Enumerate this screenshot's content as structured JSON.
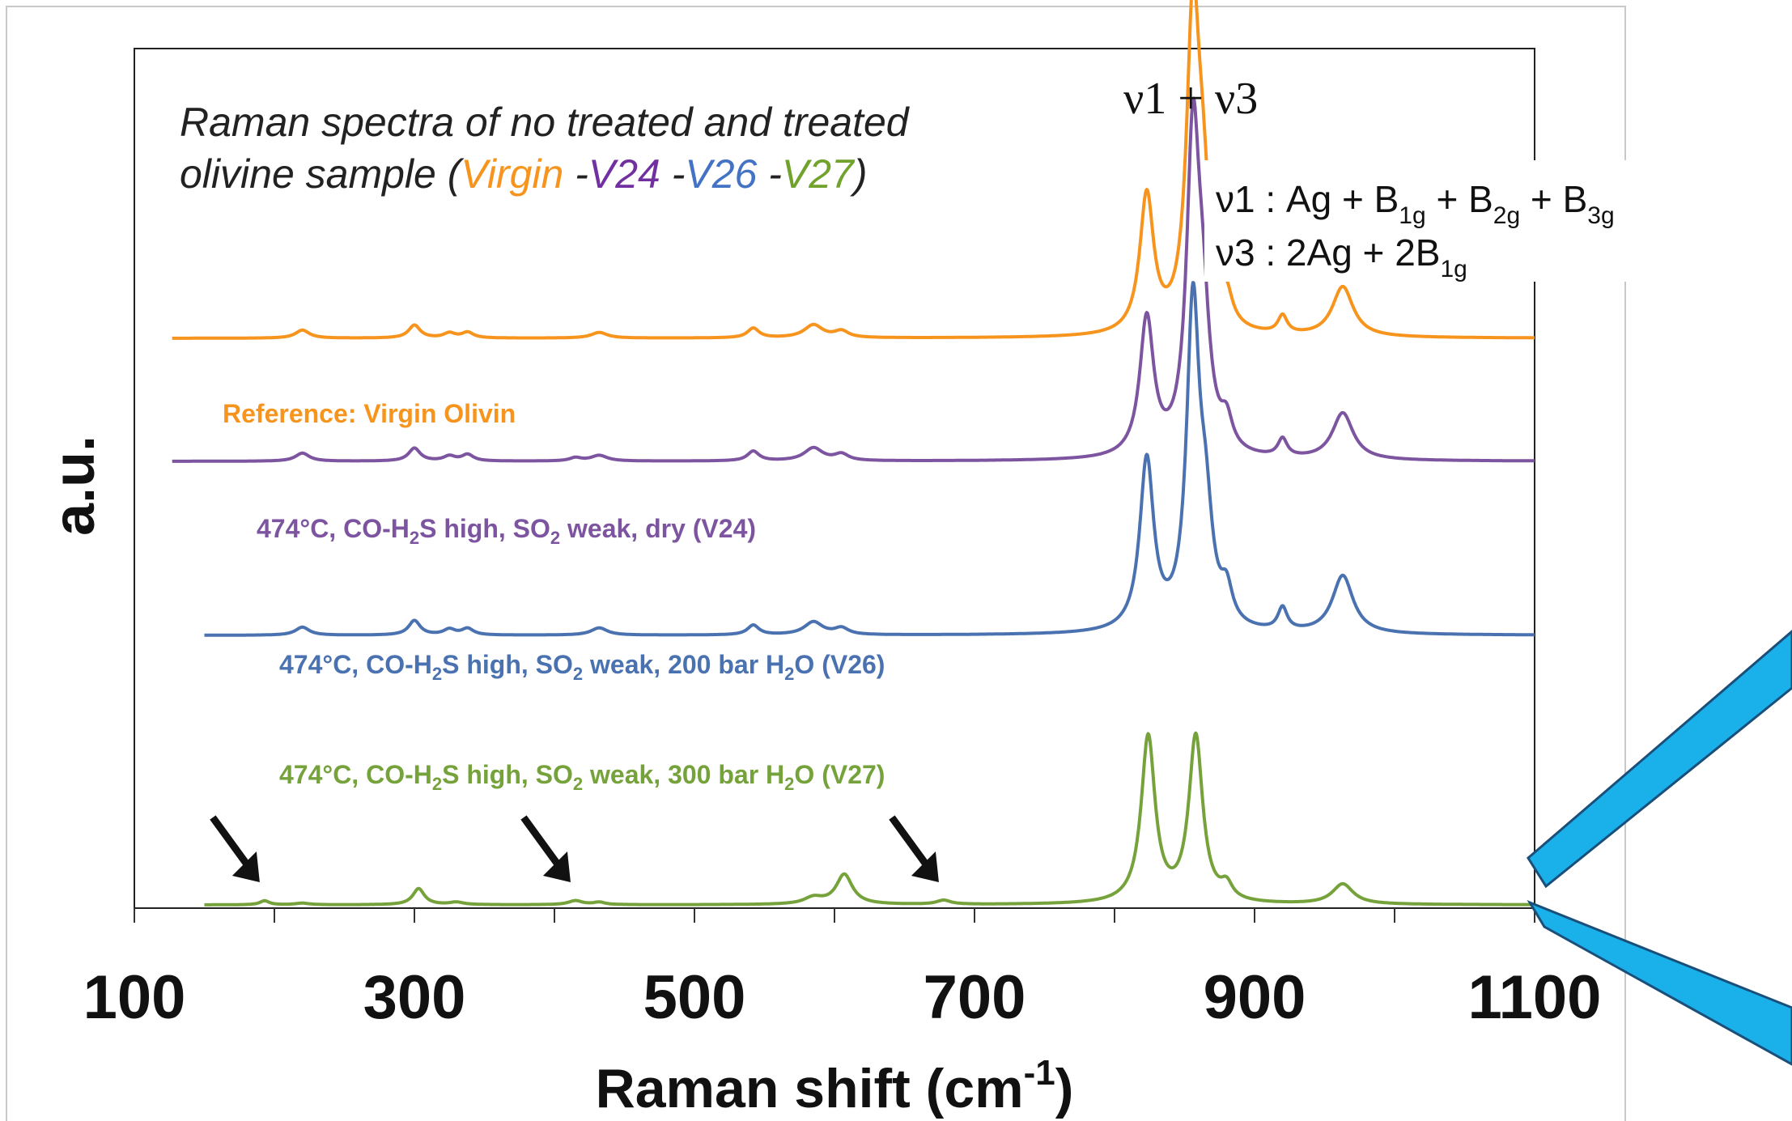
{
  "chart_data": {
    "type": "line",
    "title": "Raman spectra of no treated and treated",
    "title_line2_prefix": "olivine sample (",
    "title_samples": [
      {
        "label": "Virgin",
        "color": "#f7941d"
      },
      {
        "label": "V24",
        "color": "#7030a0"
      },
      {
        "label": "V26",
        "color": "#4472c4"
      },
      {
        "label": "V27",
        "color": "#70a22c"
      }
    ],
    "title_separator": " -",
    "title_suffix": ")",
    "xlabel": "Raman shift (cm",
    "xlabel_sup": "-1",
    "xlabel_end": ")",
    "ylabel": "a.u.",
    "xlim": [
      100,
      1100
    ],
    "x_ticks": [
      "100",
      "300",
      "500",
      "700",
      "900",
      "1100"
    ],
    "x_tick_values": [
      100,
      300,
      500,
      700,
      900,
      1100
    ],
    "x_minor_ticks": [
      200,
      400,
      600,
      800,
      1000
    ],
    "y_ticks": [],
    "grid": false,
    "peak_label": "ν1 + ν3",
    "assignments": {
      "v1_prefix": "ν1 :  Ag + B",
      "v1_parts": [
        "1g",
        " + B",
        "2g",
        " + B",
        "3g"
      ],
      "v3_prefix": "ν3 : 2Ag + 2B",
      "v3_sub": "1g"
    },
    "series": [
      {
        "name": "Reference: Virgin Olivin",
        "color": "#f7941d",
        "baseline": 700,
        "x_range": [
          127,
          1100
        ],
        "peaks": [
          [
            220,
            10,
            6
          ],
          [
            300,
            16,
            5
          ],
          [
            325,
            6,
            5
          ],
          [
            338,
            7,
            5
          ],
          [
            432,
            7,
            7
          ],
          [
            542,
            12,
            5
          ],
          [
            585,
            16,
            8
          ],
          [
            605,
            8,
            6
          ],
          [
            823,
            170,
            6
          ],
          [
            856,
            380,
            5.5
          ],
          [
            863,
            140,
            6
          ],
          [
            880,
            35,
            5
          ],
          [
            920,
            22,
            4
          ],
          [
            963,
            62,
            9
          ]
        ]
      },
      {
        "name": "474°C, CO-H2S high, SO2 weak, dry (V24)",
        "color": "#7c54a0",
        "baseline": 548,
        "x_range": [
          127,
          1100
        ],
        "peaks": [
          [
            220,
            10,
            6
          ],
          [
            300,
            16,
            5
          ],
          [
            325,
            6,
            5
          ],
          [
            338,
            8,
            5
          ],
          [
            415,
            4,
            5
          ],
          [
            432,
            7,
            7
          ],
          [
            542,
            12,
            5
          ],
          [
            585,
            16,
            8
          ],
          [
            605,
            8,
            6
          ],
          [
            823,
            170,
            6
          ],
          [
            856,
            380,
            5.5
          ],
          [
            863,
            140,
            6
          ],
          [
            880,
            35,
            5
          ],
          [
            920,
            22,
            4
          ],
          [
            963,
            58,
            9
          ]
        ]
      },
      {
        "name": "474°C, CO-H2S high, SO2 weak, 200 bar H2O (V26)",
        "color": "#4a72b0",
        "baseline": 333,
        "x_range": [
          150,
          1100
        ],
        "peaks": [
          [
            220,
            10,
            6
          ],
          [
            300,
            18,
            5
          ],
          [
            325,
            7,
            5
          ],
          [
            338,
            8,
            5
          ],
          [
            432,
            9,
            7
          ],
          [
            542,
            12,
            5
          ],
          [
            585,
            16,
            8
          ],
          [
            605,
            8,
            6
          ],
          [
            823,
            210,
            6
          ],
          [
            856,
            390,
            5.5
          ],
          [
            865,
            120,
            6
          ],
          [
            880,
            40,
            5
          ],
          [
            920,
            28,
            4
          ],
          [
            963,
            72,
            9
          ]
        ]
      },
      {
        "name": "474°C, CO-H2S high, SO2 weak, 300 bar H2O (V27)",
        "color": "#75a23a",
        "baseline": 0,
        "x_range": [
          150,
          1100
        ],
        "peaks": [
          [
            193,
            5,
            4
          ],
          [
            220,
            2,
            6
          ],
          [
            303,
            20,
            5
          ],
          [
            330,
            3,
            6
          ],
          [
            415,
            5,
            6
          ],
          [
            432,
            3,
            5
          ],
          [
            585,
            8,
            8
          ],
          [
            607,
            37,
            7
          ],
          [
            678,
            5,
            6
          ],
          [
            824,
            205,
            6
          ],
          [
            858,
            205,
            6
          ],
          [
            880,
            18,
            5
          ],
          [
            963,
            25,
            9
          ]
        ]
      }
    ],
    "series_labels": [
      {
        "parts": [
          [
            "Reference: Virgin Olivin",
            ""
          ]
        ]
      },
      {
        "parts": [
          [
            "474°C, CO-H",
            ""
          ],
          [
            "2",
            "sub"
          ],
          [
            "S high, SO",
            ""
          ],
          [
            "2",
            "sub"
          ],
          [
            " weak, dry (V24)",
            ""
          ]
        ]
      },
      {
        "parts": [
          [
            "474°C, CO-H",
            ""
          ],
          [
            "2",
            "sub"
          ],
          [
            "S high, SO",
            ""
          ],
          [
            "2",
            "sub"
          ],
          [
            " weak, 200 bar H",
            ""
          ],
          [
            "2",
            "sub"
          ],
          [
            "O (V26)",
            ""
          ]
        ]
      },
      {
        "parts": [
          [
            "474°C, CO-H",
            ""
          ],
          [
            "2",
            "sub"
          ],
          [
            "S high, SO",
            ""
          ],
          [
            "2",
            "sub"
          ],
          [
            " weak, 300 bar H",
            ""
          ],
          [
            "2",
            "sub"
          ],
          [
            "O (V27)",
            ""
          ]
        ]
      }
    ],
    "annotations": {
      "arrows_at": [
        193,
        415,
        678
      ],
      "arrow_color": "#111111",
      "callout_color": "#1ab0ea",
      "callout_stroke": "#1a4f7a"
    }
  }
}
